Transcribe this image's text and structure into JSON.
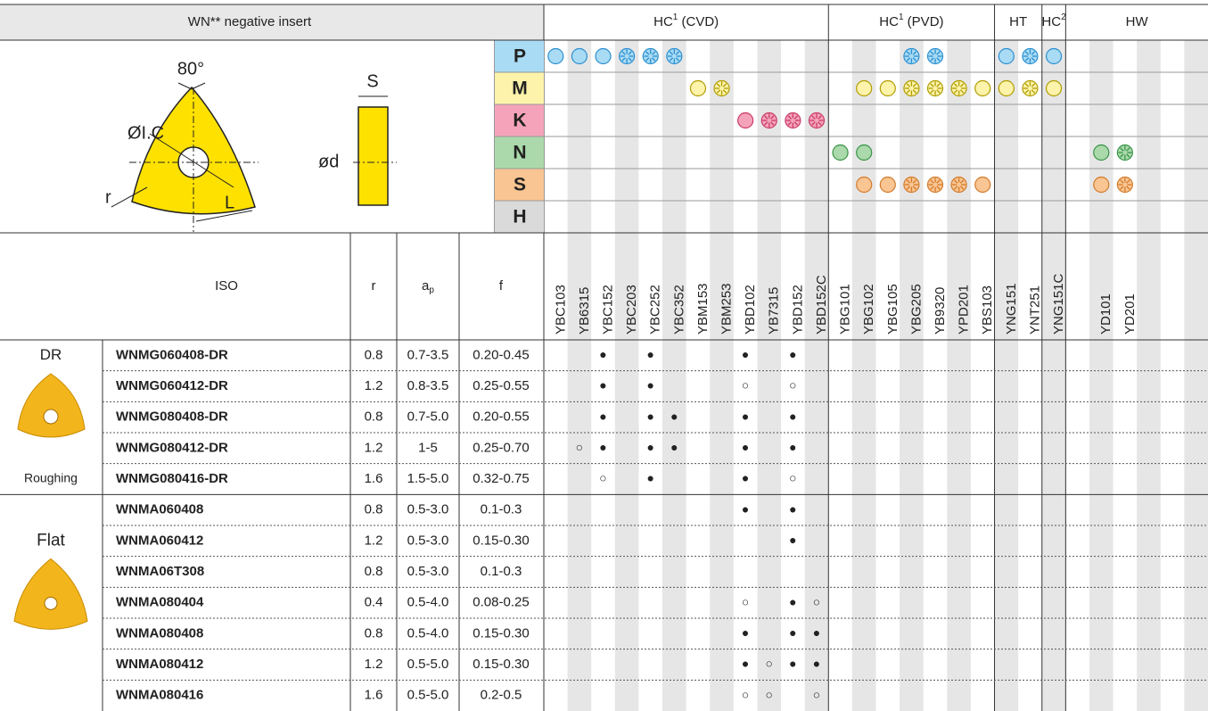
{
  "header": {
    "title": "WN** negative insert"
  },
  "diagram": {
    "angle": "80°",
    "ic": "ØI.C",
    "r": "r",
    "l": "L",
    "s": "S",
    "d": "ød"
  },
  "grade_groups": [
    {
      "name": "HC",
      "sup": "1",
      "suffix": " (CVD)",
      "grades": [
        "YBC103",
        "YB6315",
        "YBC152",
        "YBC203",
        "YBC252",
        "YBC352",
        "YBM153",
        "YBM253",
        "YBD102",
        "YB7315",
        "YBD152",
        "YBD152C"
      ]
    },
    {
      "name": "HC",
      "sup": "1",
      "suffix": " (PVD)",
      "grades": [
        "YBG101",
        "YBG102",
        "YBG105",
        "YBG205",
        "YB9320",
        "YPD201",
        "YBS103"
      ]
    },
    {
      "name": "HT",
      "grades": [
        "YNG151",
        "YNT251"
      ]
    },
    {
      "name": "HC",
      "sup": "2",
      "grades": [
        "YNG151C"
      ]
    },
    {
      "name": "HW",
      "grades": [
        null,
        "YD101",
        "YD201",
        null,
        null,
        null
      ]
    }
  ],
  "iso_groups": [
    {
      "label": "P",
      "color": "#a9dbf4",
      "stroke": "#2b8fd0",
      "marks": {
        "YBC103": "solid",
        "YB6315": "solid",
        "YBC152": "solid",
        "YBC203": "pattern",
        "YBC252": "pattern",
        "YBC352": "pattern",
        "YBG205": "pattern",
        "YB9320": "pattern",
        "YNG151": "solid",
        "YNT251": "pattern",
        "YNG151C": "solid"
      }
    },
    {
      "label": "M",
      "color": "#fdf3aa",
      "stroke": "#b09c00",
      "marks": {
        "YBM153": "solid",
        "YBM253": "pattern",
        "YBG102": "solid",
        "YBG105": "solid",
        "YBG205": "pattern",
        "YB9320": "pattern",
        "YPD201": "pattern",
        "YBS103": "solid",
        "YNG151": "solid",
        "YNT251": "pattern",
        "YNG151C": "solid"
      }
    },
    {
      "label": "K",
      "color": "#f5a3ba",
      "stroke": "#c93a68",
      "marks": {
        "YBD102": "solid",
        "YB7315": "pattern",
        "YBD152": "pattern",
        "YBD152C": "pattern"
      }
    },
    {
      "label": "N",
      "color": "#abd9ab",
      "stroke": "#379447",
      "marks": {
        "YBG101": "solid",
        "YBG102": "solid",
        "YD101": "solid",
        "YD201": "pattern"
      }
    },
    {
      "label": "S",
      "color": "#f9c592",
      "stroke": "#d27a2a",
      "marks": {
        "YBG102": "solid",
        "YBG105": "solid",
        "YBG205": "pattern",
        "YB9320": "pattern",
        "YPD201": "pattern",
        "YBS103": "solid",
        "YD101": "solid",
        "YD201": "pattern"
      }
    },
    {
      "label": "H",
      "color": "#dadada",
      "stroke": "#888888",
      "marks": {}
    }
  ],
  "columns": {
    "iso": "ISO",
    "r": "r",
    "ap": "a",
    "ap_sub": "p",
    "f": "f"
  },
  "sections": [
    {
      "label": "DR",
      "caption": "Roughing",
      "rows": [
        {
          "iso": "WNMG060408-DR",
          "r": 0.8,
          "ap": "0.7-3.5",
          "f": "0.20-0.45",
          "grades": {
            "YBC152": "●",
            "YBC252": "●",
            "YBD102": "●",
            "YBD152": "●"
          }
        },
        {
          "iso": "WNMG060412-DR",
          "r": 1.2,
          "ap": "0.8-3.5",
          "f": "0.25-0.55",
          "grades": {
            "YBC152": "●",
            "YBC252": "●",
            "YBD102": "○",
            "YBD152": "○"
          }
        },
        {
          "iso": "WNMG080408-DR",
          "r": 0.8,
          "ap": "0.7-5.0",
          "f": "0.20-0.55",
          "grades": {
            "YBC152": "●",
            "YBC252": "●",
            "YBC352": "●",
            "YBD102": "●",
            "YBD152": "●"
          }
        },
        {
          "iso": "WNMG080412-DR",
          "r": 1.2,
          "ap": "1-5",
          "f": "0.25-0.70",
          "grades": {
            "YB6315": "○",
            "YBC152": "●",
            "YBC252": "●",
            "YBC352": "●",
            "YBD102": "●",
            "YBD152": "●"
          }
        },
        {
          "iso": "WNMG080416-DR",
          "r": 1.6,
          "ap": "1.5-5.0",
          "f": "0.32-0.75",
          "grades": {
            "YBC152": "○",
            "YBC252": "●",
            "YBD102": "●",
            "YBD152": "○"
          }
        }
      ]
    },
    {
      "label": "Flat",
      "rows": [
        {
          "iso": "WNMA060408",
          "r": 0.8,
          "ap": "0.5-3.0",
          "f": "0.1-0.3",
          "grades": {
            "YBD102": "●",
            "YBD152": "●"
          }
        },
        {
          "iso": "WNMA060412",
          "r": 1.2,
          "ap": "0.5-3.0",
          "f": "0.15-0.30",
          "grades": {
            "YBD152": "●"
          }
        },
        {
          "iso": "WNMA06T308",
          "r": 0.8,
          "ap": "0.5-3.0",
          "f": "0.1-0.3",
          "grades": {}
        },
        {
          "iso": "WNMA080404",
          "r": 0.4,
          "ap": "0.5-4.0",
          "f": "0.08-0.25",
          "grades": {
            "YBD102": "○",
            "YBD152": "●",
            "YBD152C": "○"
          }
        },
        {
          "iso": "WNMA080408",
          "r": 0.8,
          "ap": "0.5-4.0",
          "f": "0.15-0.30",
          "grades": {
            "YBD102": "●",
            "YBD152": "●",
            "YBD152C": "●"
          }
        },
        {
          "iso": "WNMA080412",
          "r": 1.2,
          "ap": "0.5-5.0",
          "f": "0.15-0.30",
          "grades": {
            "YBD102": "●",
            "YB7315": "○",
            "YBD152": "●",
            "YBD152C": "●"
          }
        },
        {
          "iso": "WNMA080416",
          "r": 1.6,
          "ap": "0.5-5.0",
          "f": "0.2-0.5",
          "grades": {
            "YBD102": "○",
            "YB7315": "○",
            "YBD152C": "○"
          }
        }
      ]
    }
  ]
}
